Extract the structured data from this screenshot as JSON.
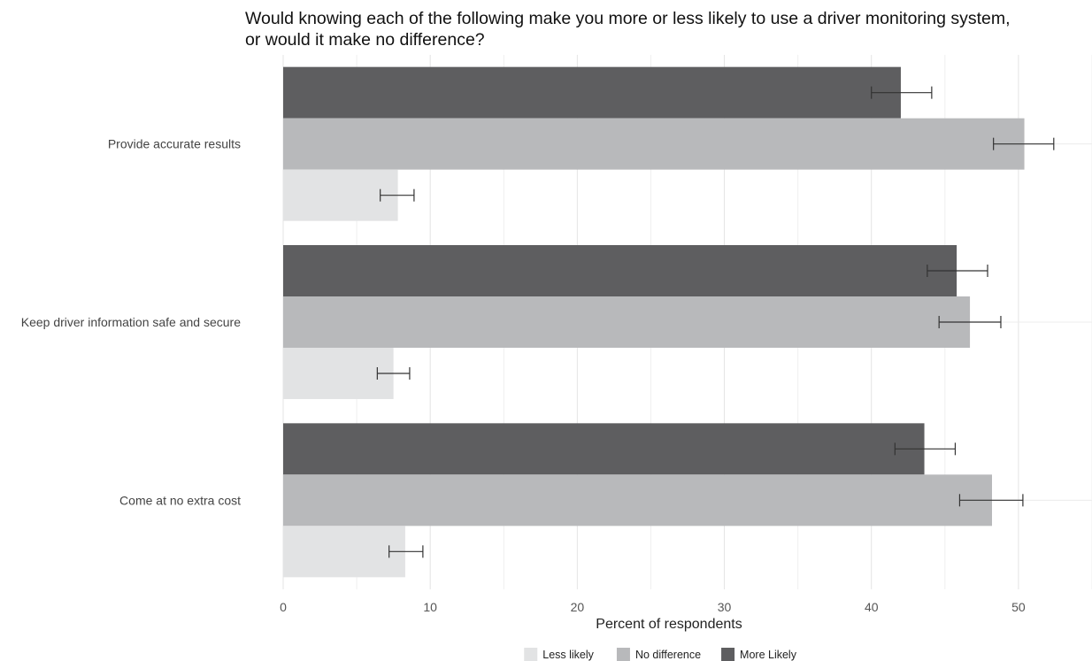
{
  "chart_data": {
    "type": "bar",
    "orientation": "horizontal",
    "title_lines": [
      "Would knowing each of the following make you more or less likely to use a driver monitoring system,",
      "or would it make no difference?"
    ],
    "xlabel": "Percent of respondents",
    "ylabel": "",
    "xlim": [
      0,
      55
    ],
    "xticks": [
      0,
      10,
      20,
      30,
      40,
      50
    ],
    "grid": true,
    "legend_position": "bottom",
    "categories": [
      "Provide accurate results",
      "Keep driver information safe and secure",
      "Come at no extra cost"
    ],
    "series": [
      {
        "name": "More Likely",
        "color": "#5e5e60",
        "values": [
          42.0,
          45.8,
          43.6
        ],
        "err_low": [
          40.0,
          43.8,
          41.6
        ],
        "err_high": [
          44.1,
          47.9,
          45.7
        ]
      },
      {
        "name": "No difference",
        "color": "#b8b9bb",
        "values": [
          50.4,
          46.7,
          48.2
        ],
        "err_low": [
          48.3,
          44.6,
          46.0
        ],
        "err_high": [
          52.4,
          48.8,
          50.3
        ]
      },
      {
        "name": "Less likely",
        "color": "#e2e3e4",
        "values": [
          7.8,
          7.5,
          8.3
        ],
        "err_low": [
          6.6,
          6.4,
          7.2
        ],
        "err_high": [
          8.9,
          8.6,
          9.5
        ]
      }
    ],
    "legend_order": [
      "Less likely",
      "No difference",
      "More Likely"
    ]
  }
}
